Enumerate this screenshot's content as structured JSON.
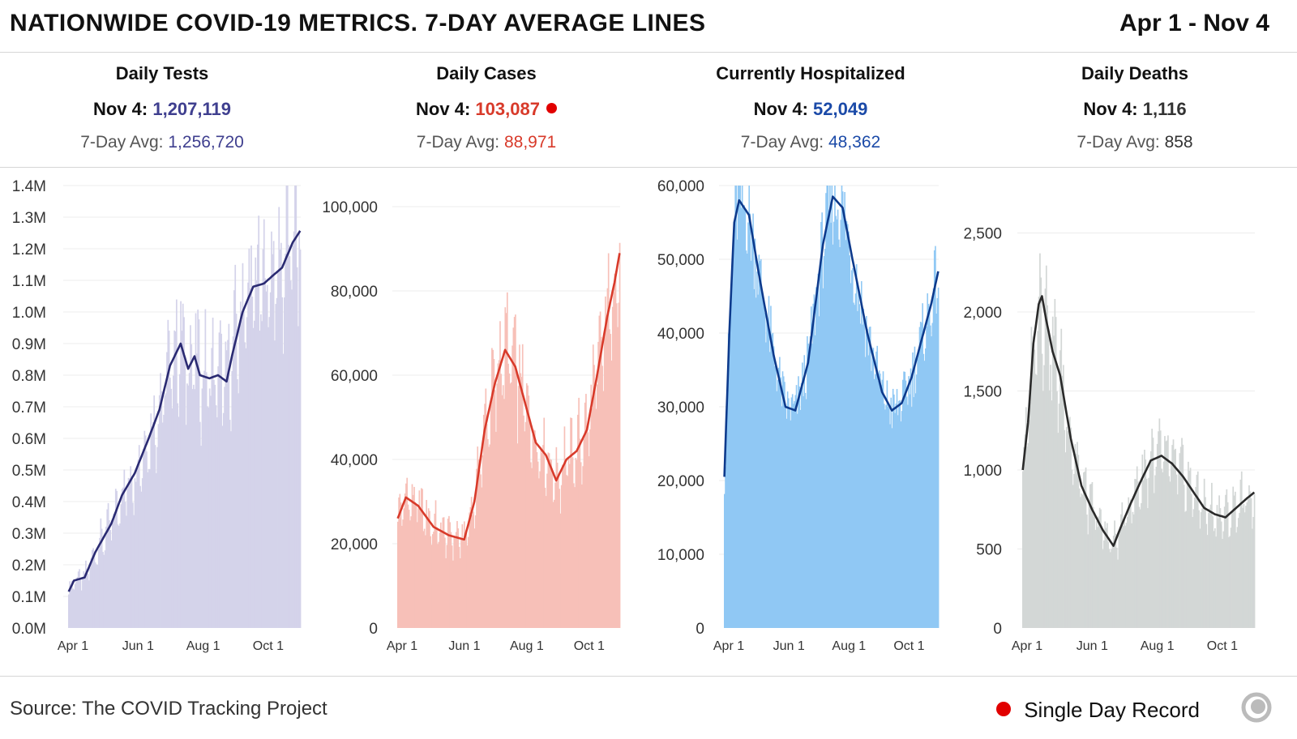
{
  "header": {
    "title": "NATIONWIDE COVID-19 METRICS. 7-DAY AVERAGE LINES",
    "date_range": "Apr 1 - Nov 4"
  },
  "stats": [
    {
      "title": "Daily Tests",
      "latest_label": "Nov 4:",
      "latest_value": "1,207,119",
      "avg_label": "7-Day Avg:",
      "avg_value": "1,256,720",
      "color": "#3f3f8f"
    },
    {
      "title": "Daily Cases",
      "latest_label": "Nov 4:",
      "latest_value": "103,087",
      "avg_label": "7-Day Avg:",
      "avg_value": "88,971",
      "color": "#d83a2a",
      "record": true
    },
    {
      "title": "Currently Hospitalized",
      "latest_label": "Nov 4:",
      "latest_value": "52,049",
      "avg_label": "7-Day Avg:",
      "avg_value": "48,362",
      "color": "#1b4aa8"
    },
    {
      "title": "Daily Deaths",
      "latest_label": "Nov 4:",
      "latest_value": "1,116",
      "avg_label": "7-Day Avg:",
      "avg_value": "858",
      "color": "#333333"
    }
  ],
  "footer": {
    "source": "Source: The COVID Tracking Project",
    "legend_label": "Single Day Record"
  },
  "chart_data": [
    {
      "type": "bar",
      "series_name": "Daily Tests",
      "x_ticks": [
        "Apr 1",
        "Jun 1",
        "Aug 1",
        "Oct 1"
      ],
      "x_tick_days": [
        0,
        61,
        122,
        183
      ],
      "total_days": 218,
      "y_ticks": [
        0,
        100000,
        200000,
        300000,
        400000,
        500000,
        600000,
        700000,
        800000,
        900000,
        1000000,
        1100000,
        1200000,
        1300000,
        1400000
      ],
      "y_tick_labels": [
        "0.0M",
        "0.1M",
        "0.2M",
        "0.3M",
        "0.4M",
        "0.5M",
        "0.6M",
        "0.7M",
        "0.8M",
        "0.9M",
        "1.0M",
        "1.1M",
        "1.2M",
        "1.3M",
        "1.4M"
      ],
      "ylim": [
        0,
        1400000
      ],
      "bar_color": "#d4d3ea",
      "line_color": "#2a2a72",
      "avg_keypoints": [
        [
          0,
          115000
        ],
        [
          5,
          150000
        ],
        [
          15,
          160000
        ],
        [
          25,
          240000
        ],
        [
          40,
          330000
        ],
        [
          50,
          420000
        ],
        [
          62,
          490000
        ],
        [
          75,
          600000
        ],
        [
          85,
          690000
        ],
        [
          95,
          830000
        ],
        [
          105,
          900000
        ],
        [
          112,
          820000
        ],
        [
          118,
          860000
        ],
        [
          123,
          800000
        ],
        [
          132,
          790000
        ],
        [
          140,
          800000
        ],
        [
          148,
          780000
        ],
        [
          153,
          860000
        ],
        [
          163,
          1000000
        ],
        [
          173,
          1080000
        ],
        [
          183,
          1090000
        ],
        [
          193,
          1120000
        ],
        [
          200,
          1140000
        ],
        [
          210,
          1220000
        ],
        [
          217,
          1256720
        ]
      ]
    },
    {
      "type": "bar",
      "series_name": "Daily Cases",
      "x_ticks": [
        "Apr 1",
        "Jun 1",
        "Aug 1",
        "Oct 1"
      ],
      "x_tick_days": [
        0,
        61,
        122,
        183
      ],
      "total_days": 218,
      "y_ticks": [
        0,
        20000,
        40000,
        60000,
        80000,
        100000
      ],
      "y_tick_labels": [
        "0",
        "20,000",
        "40,000",
        "60,000",
        "80,000",
        "100,000"
      ],
      "ylim": [
        0,
        105000
      ],
      "bar_color": "#f7c0b8",
      "line_color": "#d83a2a",
      "avg_keypoints": [
        [
          0,
          26000
        ],
        [
          8,
          31000
        ],
        [
          20,
          29000
        ],
        [
          35,
          24000
        ],
        [
          50,
          22000
        ],
        [
          65,
          21000
        ],
        [
          75,
          30000
        ],
        [
          85,
          47000
        ],
        [
          95,
          58000
        ],
        [
          105,
          66000
        ],
        [
          115,
          62000
        ],
        [
          125,
          53000
        ],
        [
          135,
          44000
        ],
        [
          145,
          41000
        ],
        [
          155,
          35000
        ],
        [
          165,
          40000
        ],
        [
          175,
          42000
        ],
        [
          185,
          47000
        ],
        [
          195,
          60000
        ],
        [
          205,
          74000
        ],
        [
          212,
          82000
        ],
        [
          217,
          88971
        ]
      ]
    },
    {
      "type": "bar",
      "series_name": "Currently Hospitalized",
      "x_ticks": [
        "Apr 1",
        "Jun 1",
        "Aug 1",
        "Oct 1"
      ],
      "x_tick_days": [
        0,
        61,
        122,
        183
      ],
      "total_days": 218,
      "y_ticks": [
        0,
        10000,
        20000,
        30000,
        40000,
        50000,
        60000
      ],
      "y_tick_labels": [
        "0",
        "10,000",
        "20,000",
        "30,000",
        "40,000",
        "50,000",
        "60,000"
      ],
      "ylim": [
        0,
        60000
      ],
      "bar_color": "#90c8f4",
      "line_color": "#0d3a8c",
      "avg_keypoints": [
        [
          0,
          20500
        ],
        [
          5,
          40000
        ],
        [
          10,
          55000
        ],
        [
          15,
          58000
        ],
        [
          25,
          56000
        ],
        [
          35,
          48000
        ],
        [
          50,
          37000
        ],
        [
          62,
          30000
        ],
        [
          72,
          29500
        ],
        [
          85,
          36000
        ],
        [
          100,
          52000
        ],
        [
          110,
          58500
        ],
        [
          120,
          57000
        ],
        [
          130,
          50000
        ],
        [
          145,
          40000
        ],
        [
          160,
          32000
        ],
        [
          170,
          29500
        ],
        [
          180,
          30500
        ],
        [
          190,
          34000
        ],
        [
          200,
          39000
        ],
        [
          210,
          44000
        ],
        [
          217,
          48362
        ]
      ]
    },
    {
      "type": "bar",
      "series_name": "Daily Deaths",
      "x_ticks": [
        "Apr 1",
        "Jun 1",
        "Aug 1",
        "Oct 1"
      ],
      "x_tick_days": [
        0,
        61,
        122,
        183
      ],
      "total_days": 218,
      "y_ticks": [
        0,
        500,
        1000,
        1500,
        2000,
        2500
      ],
      "y_tick_labels": [
        "0",
        "500",
        "1,000",
        "1,500",
        "2,000",
        "2,500"
      ],
      "ylim": [
        0,
        2800
      ],
      "bar_color": "#d3d7d6",
      "line_color": "#2a2a2a",
      "avg_keypoints": [
        [
          0,
          1000
        ],
        [
          5,
          1300
        ],
        [
          10,
          1800
        ],
        [
          15,
          2050
        ],
        [
          18,
          2100
        ],
        [
          22,
          1950
        ],
        [
          28,
          1750
        ],
        [
          35,
          1600
        ],
        [
          45,
          1200
        ],
        [
          55,
          900
        ],
        [
          65,
          750
        ],
        [
          75,
          620
        ],
        [
          85,
          520
        ],
        [
          92,
          640
        ],
        [
          100,
          770
        ],
        [
          110,
          920
        ],
        [
          120,
          1060
        ],
        [
          130,
          1090
        ],
        [
          140,
          1040
        ],
        [
          150,
          960
        ],
        [
          160,
          860
        ],
        [
          170,
          760
        ],
        [
          180,
          720
        ],
        [
          190,
          700
        ],
        [
          200,
          760
        ],
        [
          210,
          820
        ],
        [
          217,
          858
        ]
      ]
    }
  ]
}
